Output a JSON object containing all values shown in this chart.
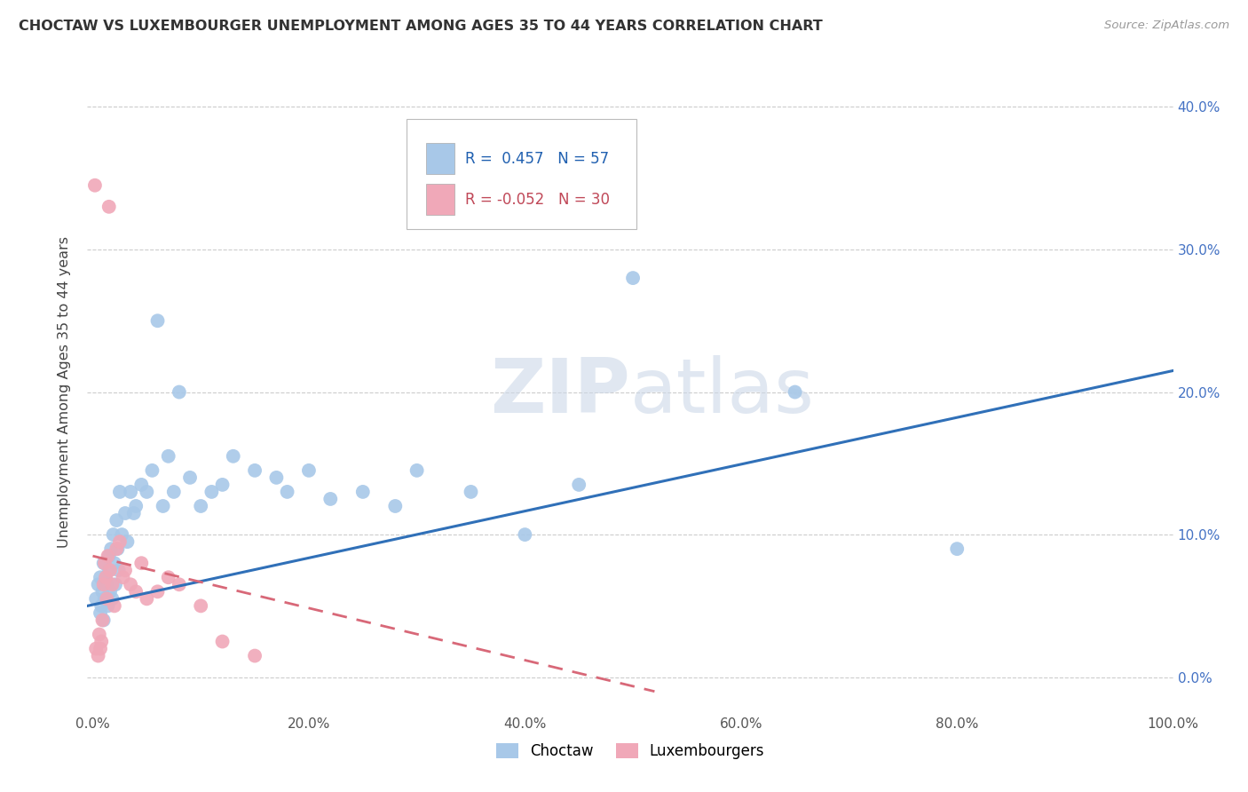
{
  "title": "CHOCTAW VS LUXEMBOURGER UNEMPLOYMENT AMONG AGES 35 TO 44 YEARS CORRELATION CHART",
  "source": "Source: ZipAtlas.com",
  "ylabel": "Unemployment Among Ages 35 to 44 years",
  "xlim": [
    -0.005,
    1.0
  ],
  "ylim": [
    -0.025,
    0.425
  ],
  "xticks": [
    0.0,
    0.2,
    0.4,
    0.6,
    0.8,
    1.0
  ],
  "xtick_labels": [
    "0.0%",
    "20.0%",
    "40.0%",
    "60.0%",
    "80.0%",
    "100.0%"
  ],
  "ytick_labels": [
    "0.0%",
    "10.0%",
    "20.0%",
    "30.0%",
    "40.0%"
  ],
  "yticks": [
    0.0,
    0.1,
    0.2,
    0.3,
    0.4
  ],
  "choctaw_R": 0.457,
  "choctaw_N": 57,
  "luxembourger_R": -0.052,
  "luxembourger_N": 30,
  "choctaw_color": "#a8c8e8",
  "luxembourger_color": "#f0a8b8",
  "choctaw_line_color": "#3070b8",
  "luxembourger_line_color": "#d86878",
  "choctaw_line_start_y": 0.05,
  "choctaw_line_end_y": 0.215,
  "luxembourger_line_start_y": 0.085,
  "luxembourger_line_end_y": -0.01,
  "luxembourger_line_end_x": 0.52,
  "background_color": "#ffffff",
  "watermark_color": "#ccd8e8",
  "watermark_alpha": 0.6,
  "choctaw_x": [
    0.003,
    0.005,
    0.007,
    0.007,
    0.008,
    0.009,
    0.01,
    0.01,
    0.011,
    0.012,
    0.013,
    0.014,
    0.015,
    0.015,
    0.016,
    0.017,
    0.018,
    0.019,
    0.02,
    0.021,
    0.022,
    0.023,
    0.024,
    0.025,
    0.027,
    0.03,
    0.032,
    0.035,
    0.038,
    0.04,
    0.045,
    0.05,
    0.055,
    0.06,
    0.065,
    0.07,
    0.075,
    0.08,
    0.09,
    0.1,
    0.11,
    0.12,
    0.13,
    0.15,
    0.17,
    0.18,
    0.2,
    0.22,
    0.25,
    0.28,
    0.3,
    0.35,
    0.4,
    0.45,
    0.5,
    0.65,
    0.8
  ],
  "choctaw_y": [
    0.055,
    0.065,
    0.045,
    0.07,
    0.05,
    0.06,
    0.04,
    0.08,
    0.055,
    0.07,
    0.065,
    0.05,
    0.075,
    0.085,
    0.06,
    0.09,
    0.055,
    0.1,
    0.08,
    0.065,
    0.11,
    0.09,
    0.075,
    0.13,
    0.1,
    0.115,
    0.095,
    0.13,
    0.115,
    0.12,
    0.135,
    0.13,
    0.145,
    0.25,
    0.12,
    0.155,
    0.13,
    0.2,
    0.14,
    0.12,
    0.13,
    0.135,
    0.155,
    0.145,
    0.14,
    0.13,
    0.145,
    0.125,
    0.13,
    0.12,
    0.145,
    0.13,
    0.1,
    0.135,
    0.28,
    0.2,
    0.09
  ],
  "luxembourger_x": [
    0.003,
    0.005,
    0.006,
    0.007,
    0.008,
    0.009,
    0.01,
    0.011,
    0.012,
    0.013,
    0.014,
    0.016,
    0.018,
    0.02,
    0.022,
    0.025,
    0.028,
    0.03,
    0.035,
    0.04,
    0.045,
    0.05,
    0.06,
    0.07,
    0.08,
    0.1,
    0.12,
    0.15,
    0.002,
    0.015
  ],
  "luxembourger_y": [
    0.02,
    0.015,
    0.03,
    0.02,
    0.025,
    0.04,
    0.065,
    0.08,
    0.07,
    0.055,
    0.085,
    0.075,
    0.065,
    0.05,
    0.09,
    0.095,
    0.07,
    0.075,
    0.065,
    0.06,
    0.08,
    0.055,
    0.06,
    0.07,
    0.065,
    0.05,
    0.025,
    0.015,
    0.345,
    0.33
  ]
}
